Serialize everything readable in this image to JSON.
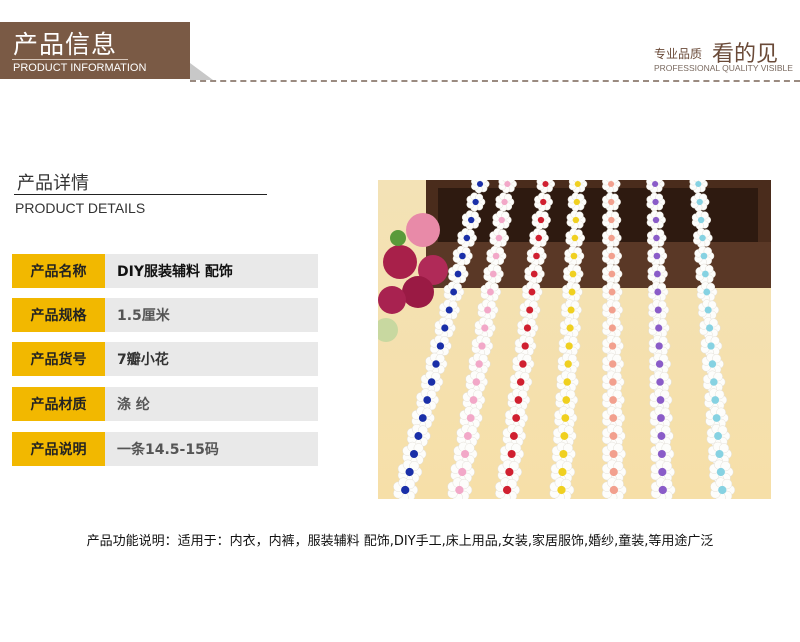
{
  "header": {
    "title": "产品信息",
    "subtitle": "PRODUCT INFORMATION",
    "brand_color": "#7a5a45"
  },
  "slogan": {
    "small": "专业品质",
    "big": "看的见",
    "english": "PROFESSIONAL QUALITY VISIBLE"
  },
  "details": {
    "title": "产品详情",
    "subtitle": "PRODUCT DETAILS",
    "label_color": "#f2b800",
    "rows": [
      {
        "label": "产品名称",
        "value": "DIY服装辅料 配饰"
      },
      {
        "label": "产品规格",
        "value": "1.5厘米"
      },
      {
        "label": "产品货号",
        "value": "7瓣小花"
      },
      {
        "label": "产品材质",
        "value": "涤 纶"
      },
      {
        "label": "产品说明",
        "value": "一条14.5-15码"
      }
    ]
  },
  "photo": {
    "strand_colors": [
      "#1a2fa8",
      "#f2a8c8",
      "#d02030",
      "#f0d020",
      "#f2a08e",
      "#8a5cc8",
      "#86d2e2"
    ]
  },
  "description": "产品功能说明：适用于：内衣，内裤，服装辅料 配饰,DIY手工,床上用品,女装,家居服饰,婚纱,童装,等用途广泛"
}
